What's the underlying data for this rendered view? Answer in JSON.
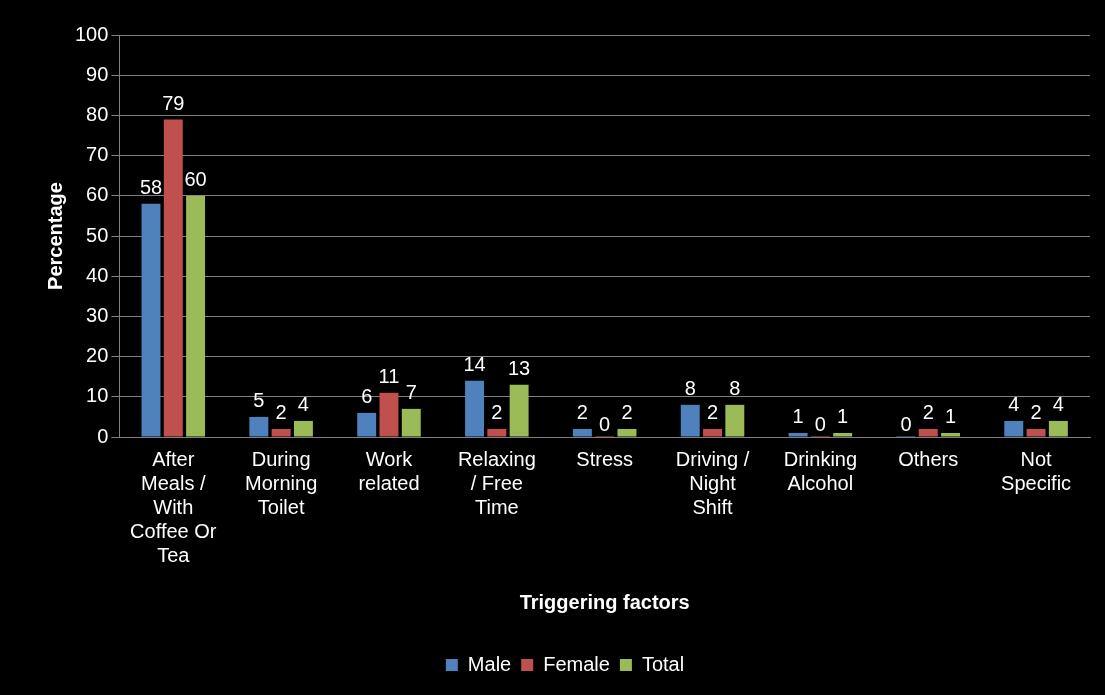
{
  "chart_data": {
    "type": "bar",
    "xlabel": "Triggering factors",
    "ylabel": "Percentage",
    "categories": [
      "After Meals / With Coffee Or Tea",
      "During Morning Toilet",
      "Work related",
      "Relaxing / Free Time",
      "Stress",
      "Driving / Night Shift",
      "Drinking Alcohol",
      "Others",
      "Not Specific"
    ],
    "series": [
      {
        "name": "Male",
        "color": "#4f81bd",
        "values": [
          58,
          5,
          6,
          14,
          2,
          8,
          1,
          0,
          4
        ]
      },
      {
        "name": "Female",
        "color": "#c0504d",
        "values": [
          79,
          2,
          11,
          2,
          0,
          2,
          0,
          2,
          2
        ]
      },
      {
        "name": "Total",
        "color": "#9bbb59",
        "values": [
          60,
          4,
          7,
          13,
          2,
          8,
          1,
          1,
          4
        ]
      }
    ],
    "ylim": [
      0,
      100
    ],
    "yticks": [
      0,
      10,
      20,
      30,
      40,
      50,
      60,
      70,
      80,
      90,
      100
    ],
    "grid": "y",
    "legend": "bottom",
    "data_labels": true
  }
}
